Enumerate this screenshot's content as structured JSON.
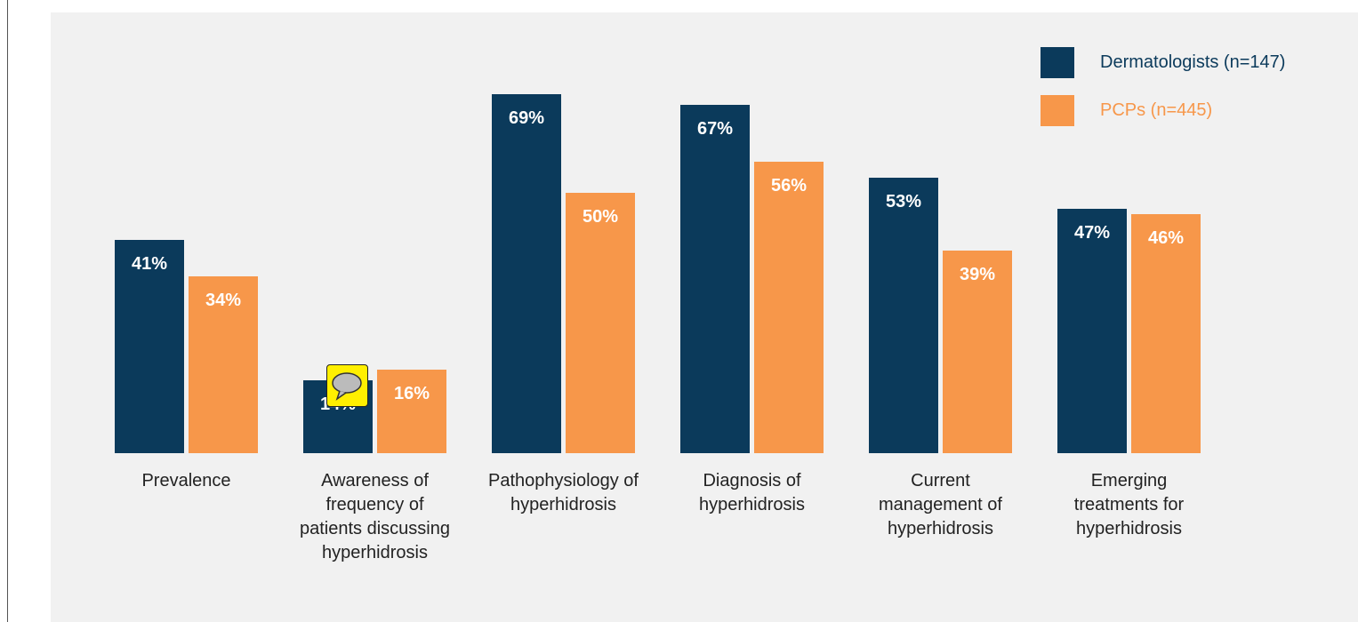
{
  "chart_data": {
    "type": "bar",
    "categories": [
      "Prevalence",
      "Awareness of frequency of patients discussing hyperhidrosis",
      "Pathophysiology of hyperhidrosis",
      "Diagnosis of hyperhidrosis",
      "Current management of hyperhidrosis",
      "Emerging treatments for hyperhidrosis"
    ],
    "series": [
      {
        "name": "Dermatologists (n=147)",
        "color": "#0b3a5b",
        "values": [
          41,
          14,
          69,
          67,
          53,
          47
        ],
        "value_labels": [
          "41%",
          "14%",
          "69%",
          "67%",
          "53%",
          "47%"
        ]
      },
      {
        "name": "PCPs (n=445)",
        "color": "#f7974a",
        "values": [
          34,
          16,
          50,
          56,
          39,
          46
        ],
        "value_labels": [
          "34%",
          "16%",
          "50%",
          "56%",
          "39%",
          "46%"
        ]
      }
    ],
    "legend": "top-right"
  }
}
